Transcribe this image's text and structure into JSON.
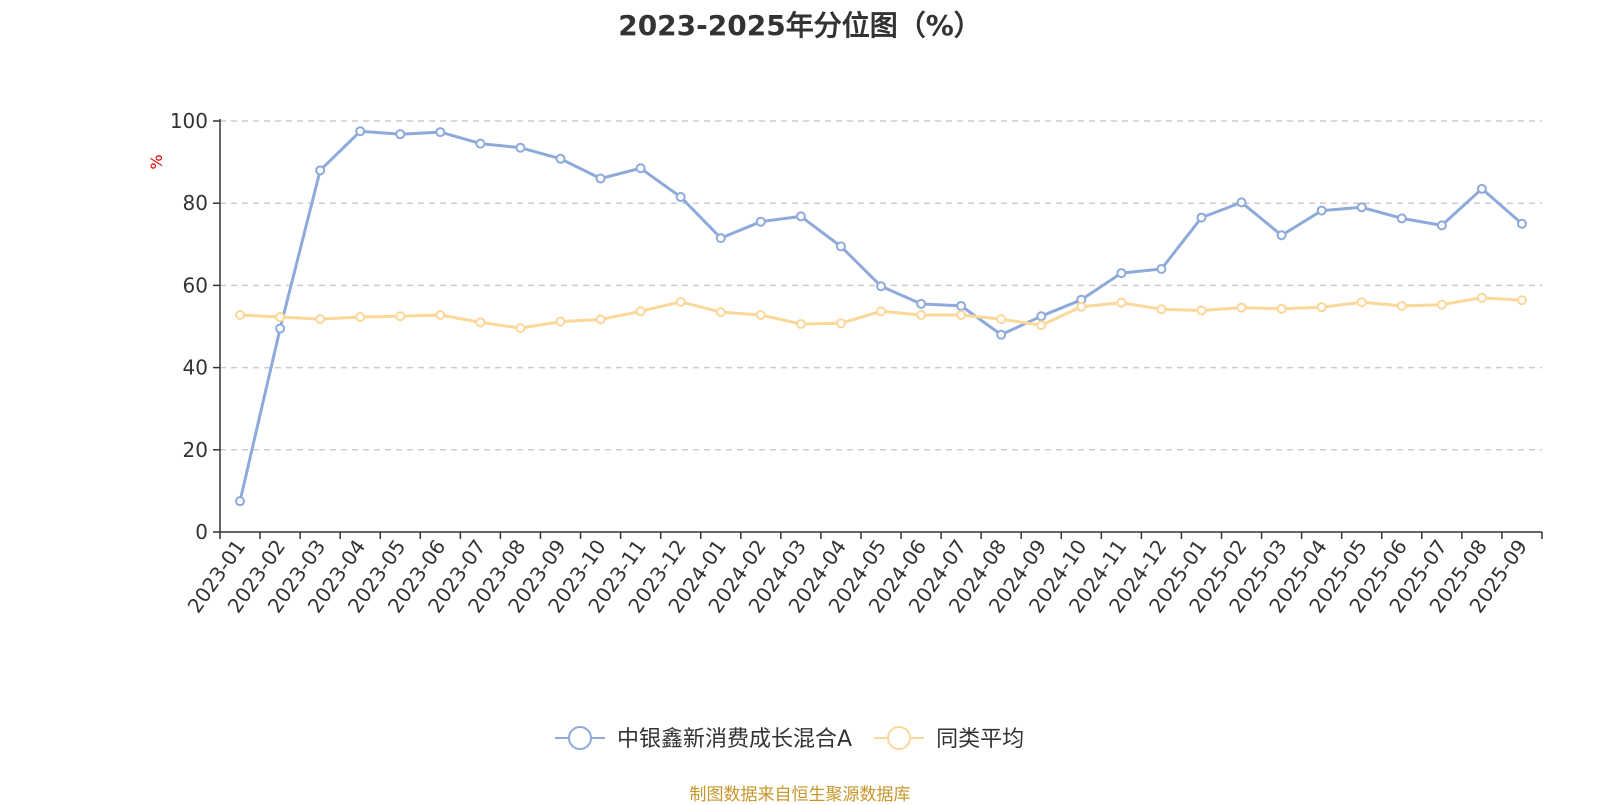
{
  "chart_data": {
    "type": "line",
    "title": "2023-2025年分位图（%）",
    "ylabel": "%",
    "ylim": [
      0,
      100
    ],
    "yticks": [
      0,
      20,
      40,
      60,
      80,
      100
    ],
    "grid": true,
    "legend_position": "bottom-center",
    "categories": [
      "2023-01",
      "2023-02",
      "2023-03",
      "2023-04",
      "2023-05",
      "2023-06",
      "2023-07",
      "2023-08",
      "2023-09",
      "2023-10",
      "2023-11",
      "2023-12",
      "2024-01",
      "2024-02",
      "2024-03",
      "2024-04",
      "2024-05",
      "2024-06",
      "2024-07",
      "2024-08",
      "2024-09",
      "2024-10",
      "2024-11",
      "2024-12",
      "2025-01",
      "2025-02",
      "2025-03",
      "2025-04",
      "2025-05",
      "2025-06",
      "2025-07",
      "2025-08",
      "2025-09"
    ],
    "series": [
      {
        "name": "中银鑫新消费成长混合A",
        "color": "#8eaadb",
        "values": [
          7.5,
          49.5,
          88,
          97.5,
          96.8,
          97.3,
          94.5,
          93.5,
          90.8,
          86,
          88.5,
          81.5,
          71.5,
          75.5,
          76.8,
          69.5,
          59.8,
          55.5,
          55,
          48,
          52.5,
          56.5,
          63,
          64,
          76.5,
          80.2,
          72.2,
          78.2,
          79,
          76.3,
          74.6,
          83.5,
          75
        ]
      },
      {
        "name": "同类平均",
        "color": "#fcd79a",
        "values": [
          52.8,
          52.3,
          51.8,
          52.3,
          52.5,
          52.8,
          51,
          49.6,
          51.2,
          51.7,
          53.7,
          56,
          53.5,
          52.8,
          50.6,
          50.8,
          53.7,
          52.8,
          52.8,
          51.8,
          50.3,
          54.8,
          55.8,
          54.2,
          53.9,
          54.6,
          54.3,
          54.7,
          55.9,
          55,
          55.3,
          57,
          56.4
        ]
      }
    ]
  },
  "source_note": "制图数据来自恒生聚源数据库"
}
